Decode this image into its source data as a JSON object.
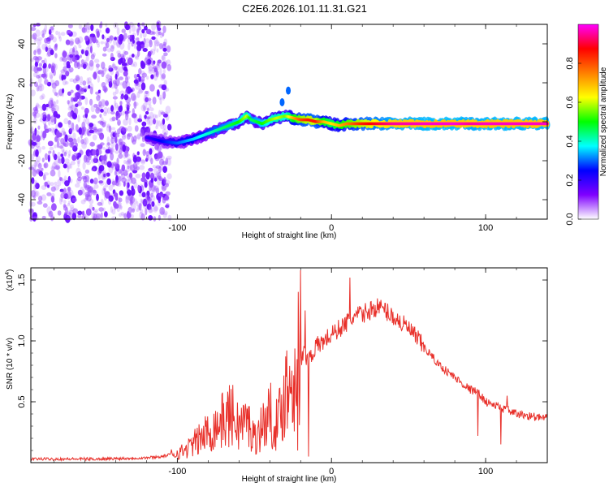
{
  "title": "C2E6.2026.101.11.31.G21",
  "chart_data": [
    {
      "type": "heatmap",
      "title": "C2E6.2026.101.11.31.G21",
      "xlabel": "Height of straight line (km)",
      "ylabel": "Frequency (Hz)",
      "xlim": [
        -195,
        140
      ],
      "ylim": [
        -50,
        50
      ],
      "xticks": [
        -100,
        0,
        100
      ],
      "yticks": [
        -40,
        -20,
        0,
        20,
        40
      ],
      "noise_region_x": [
        -195,
        -105
      ],
      "ridge": {
        "x": [
          -120,
          -110,
          -100,
          -90,
          -80,
          -70,
          -60,
          -55,
          -52,
          -45,
          -40,
          -35,
          -30,
          -25,
          -20,
          -15,
          -10,
          -5,
          0,
          5,
          10,
          20,
          40,
          60,
          80,
          90,
          100,
          110,
          120,
          140
        ],
        "freq": [
          -8,
          -10,
          -11,
          -9,
          -6,
          -3,
          0,
          3,
          1,
          -1,
          1,
          2,
          3,
          2,
          1,
          1,
          0,
          0,
          -1,
          -2,
          -1,
          -1,
          -1,
          -1,
          -1,
          -1,
          -1,
          -1,
          -1,
          -1
        ],
        "amplitude": [
          0.2,
          0.25,
          0.3,
          0.35,
          0.4,
          0.45,
          0.5,
          0.6,
          0.45,
          0.5,
          0.55,
          0.6,
          0.55,
          0.7,
          0.8,
          0.85,
          0.85,
          0.7,
          0.65,
          0.7,
          0.75,
          0.85,
          0.95,
          0.97,
          0.98,
          0.95,
          0.97,
          0.97,
          0.97,
          0.97
        ]
      },
      "spur_points": [
        {
          "x": -32,
          "freq": 10
        },
        {
          "x": -28,
          "freq": 16
        }
      ],
      "colorbar": {
        "label": "Normalized spectral amplitude",
        "range": [
          0,
          1
        ],
        "ticks": [
          "0.0",
          "0.2",
          "0.4",
          "0.6",
          "0.8"
        ],
        "tick_values": [
          0.0,
          0.2,
          0.4,
          0.6,
          0.8
        ],
        "colors": [
          "#ffffff",
          "#7f00ff",
          "#0000ff",
          "#00ffff",
          "#00ff00",
          "#ffff00",
          "#ff7f00",
          "#ff0000",
          "#ff00ff"
        ]
      }
    },
    {
      "type": "line",
      "xlabel": "Height of straight line (km)",
      "ylabel": "SNR (10 * v/v)",
      "scale_label_prefix": "(x10",
      "scale_label_exp": "4",
      "scale_label_suffix": ")",
      "xlim": [
        -195,
        140
      ],
      "ylim": [
        0,
        1.6
      ],
      "xticks": [
        -100,
        0,
        100
      ],
      "yticks": [
        0.5,
        1.0,
        1.5
      ],
      "ytick_labels": [
        "0.5",
        "1.0",
        "1.5"
      ],
      "series": [
        {
          "name": "SNR",
          "color": "#e8302a",
          "x": [
            -195,
            -150,
            -120,
            -110,
            -100,
            -95,
            -90,
            -85,
            -80,
            -75,
            -70,
            -65,
            -60,
            -55,
            -50,
            -45,
            -40,
            -35,
            -30,
            -25,
            -22,
            -20,
            -18,
            -15,
            -10,
            -5,
            0,
            5,
            10,
            15,
            20,
            25,
            30,
            35,
            40,
            50,
            60,
            70,
            80,
            90,
            95,
            100,
            110,
            120,
            140
          ],
          "values": [
            0.03,
            0.03,
            0.04,
            0.05,
            0.08,
            0.1,
            0.15,
            0.2,
            0.25,
            0.3,
            0.35,
            0.4,
            0.3,
            0.35,
            0.2,
            0.3,
            0.4,
            0.3,
            0.6,
            0.7,
            0.9,
            0.8,
            0.9,
            0.85,
            0.95,
            1.0,
            1.05,
            1.1,
            1.15,
            1.2,
            1.22,
            1.25,
            1.28,
            1.25,
            1.2,
            1.1,
            0.95,
            0.8,
            0.7,
            0.6,
            0.58,
            0.5,
            0.45,
            0.4,
            0.36
          ]
        }
      ],
      "spikes": [
        {
          "x": -20,
          "value": 1.58
        },
        {
          "x": -22,
          "value": 0.1
        },
        {
          "x": -17,
          "value": 1.25
        },
        {
          "x": -15,
          "value": 0.05
        },
        {
          "x": 12,
          "value": 1.52
        },
        {
          "x": 95,
          "value": 0.22
        },
        {
          "x": 110,
          "value": 0.15
        },
        {
          "x": 114,
          "value": 0.55
        }
      ]
    }
  ]
}
